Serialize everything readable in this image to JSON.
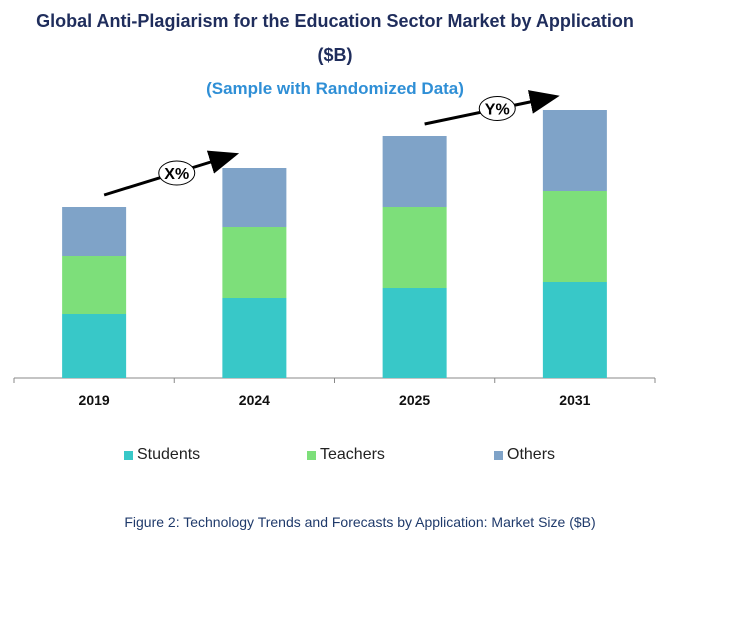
{
  "chart_data": {
    "type": "bar",
    "stacked": true,
    "title_line1": "Global Anti-Plagiarism for the Education Sector Market by Application",
    "title_line2": "($B)",
    "subtitle": "(Sample with Randomized Data)",
    "categories": [
      "2019",
      "2024",
      "2025",
      "2031"
    ],
    "series": [
      {
        "name": "Students",
        "color": "#38c8c8",
        "values": [
          64,
          80,
          90,
          96
        ]
      },
      {
        "name": "Teachers",
        "color": "#7ddf7a",
        "values": [
          58,
          71,
          81,
          91
        ]
      },
      {
        "name": "Others",
        "color": "#7fa3c8",
        "values": [
          49,
          59,
          71,
          81
        ]
      }
    ],
    "ylim": [
      0,
      300
    ],
    "annotations": [
      {
        "label": "X%",
        "from_category": "2019",
        "to_category": "2024"
      },
      {
        "label": "Y%",
        "from_category": "2025",
        "to_category": "2031"
      }
    ],
    "legend_position": "bottom",
    "grid": false
  },
  "caption": "Figure 2: Technology  Trends  and Forecasts by Application: Market Size ($B)"
}
